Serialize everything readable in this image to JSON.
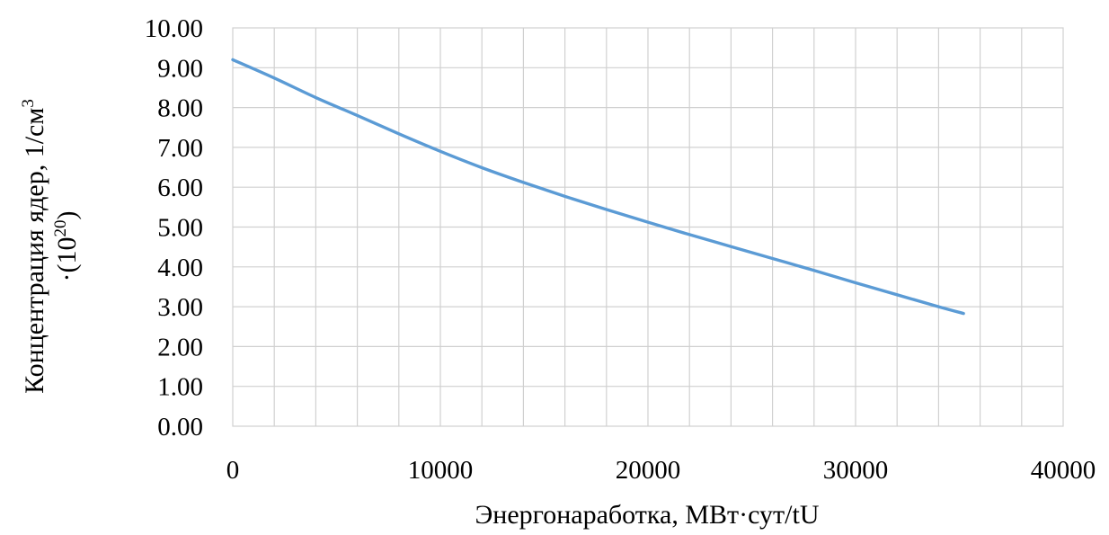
{
  "chart_data": {
    "type": "line",
    "title": "",
    "xlabel": "Энергонаработка, МВт·сут/tU",
    "ylabel": {
      "line1_main": "Концентрация ядер, 1/см",
      "line1_sup": "3",
      "line2_main": "·(10",
      "line2_sup": "20",
      "line2_end": ")"
    },
    "xlim": [
      0,
      40000
    ],
    "ylim": [
      0,
      10
    ],
    "x_ticks": [
      {
        "value": 0,
        "label": "0"
      },
      {
        "value": 10000,
        "label": "10000"
      },
      {
        "value": 20000,
        "label": "20000"
      },
      {
        "value": 30000,
        "label": "30000"
      },
      {
        "value": 40000,
        "label": "40000"
      }
    ],
    "y_ticks": [
      {
        "value": 0,
        "label": "0.00"
      },
      {
        "value": 1,
        "label": "1.00"
      },
      {
        "value": 2,
        "label": "2.00"
      },
      {
        "value": 3,
        "label": "3.00"
      },
      {
        "value": 4,
        "label": "4.00"
      },
      {
        "value": 5,
        "label": "5.00"
      },
      {
        "value": 6,
        "label": "6.00"
      },
      {
        "value": 7,
        "label": "7.00"
      },
      {
        "value": 8,
        "label": "8.00"
      },
      {
        "value": 9,
        "label": "9.00"
      },
      {
        "value": 10,
        "label": "10.00"
      }
    ],
    "x_minor_grid_step": 2000,
    "grid": true,
    "legend": "none",
    "series": [
      {
        "color": "#5b9bd5",
        "points": [
          {
            "x": 0,
            "y": 9.2
          },
          {
            "x": 2000,
            "y": 8.74
          },
          {
            "x": 4000,
            "y": 8.25
          },
          {
            "x": 6000,
            "y": 7.8
          },
          {
            "x": 8000,
            "y": 7.34
          },
          {
            "x": 10000,
            "y": 6.9
          },
          {
            "x": 12000,
            "y": 6.49
          },
          {
            "x": 14000,
            "y": 6.12
          },
          {
            "x": 16000,
            "y": 5.77
          },
          {
            "x": 18000,
            "y": 5.44
          },
          {
            "x": 20000,
            "y": 5.12
          },
          {
            "x": 22000,
            "y": 4.81
          },
          {
            "x": 24000,
            "y": 4.51
          },
          {
            "x": 26000,
            "y": 4.21
          },
          {
            "x": 28000,
            "y": 3.91
          },
          {
            "x": 30000,
            "y": 3.6
          },
          {
            "x": 32000,
            "y": 3.3
          },
          {
            "x": 34000,
            "y": 3.0
          },
          {
            "x": 35200,
            "y": 2.83
          }
        ]
      }
    ]
  }
}
